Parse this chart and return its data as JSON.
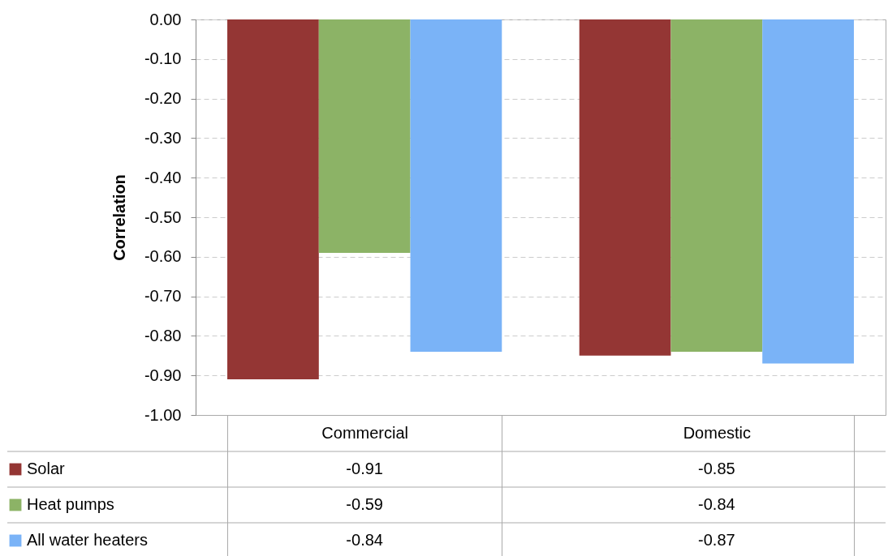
{
  "chart_data": {
    "type": "bar",
    "ylabel": "Correlation",
    "categories": [
      "Commercial",
      "Domestic"
    ],
    "series": [
      {
        "name": "Solar",
        "color": "#943634",
        "values": [
          -0.91,
          -0.85
        ]
      },
      {
        "name": "Heat pumps",
        "color": "#8cb366",
        "values": [
          -0.59,
          -0.84
        ]
      },
      {
        "name": "All water heaters",
        "color": "#7ab3f7",
        "values": [
          -0.84,
          -0.87
        ]
      }
    ],
    "ylim": [
      -1,
      0
    ],
    "yticks": [
      {
        "value": -1,
        "label": "-1.00"
      },
      {
        "value": -0.9,
        "label": "-0.90"
      },
      {
        "value": -0.8,
        "label": "-0.80"
      },
      {
        "value": -0.7,
        "label": "-0.70"
      },
      {
        "value": -0.6,
        "label": "-0.60"
      },
      {
        "value": -0.5,
        "label": "-0.50"
      },
      {
        "value": -0.4,
        "label": "-0.40"
      },
      {
        "value": -0.3,
        "label": "-0.30"
      },
      {
        "value": -0.2,
        "label": "-0.20"
      },
      {
        "value": -0.1,
        "label": "-0.10"
      },
      {
        "value": 0,
        "label": "0.00"
      }
    ],
    "grid": "y",
    "legend": "bottom left",
    "data_labels": true
  }
}
